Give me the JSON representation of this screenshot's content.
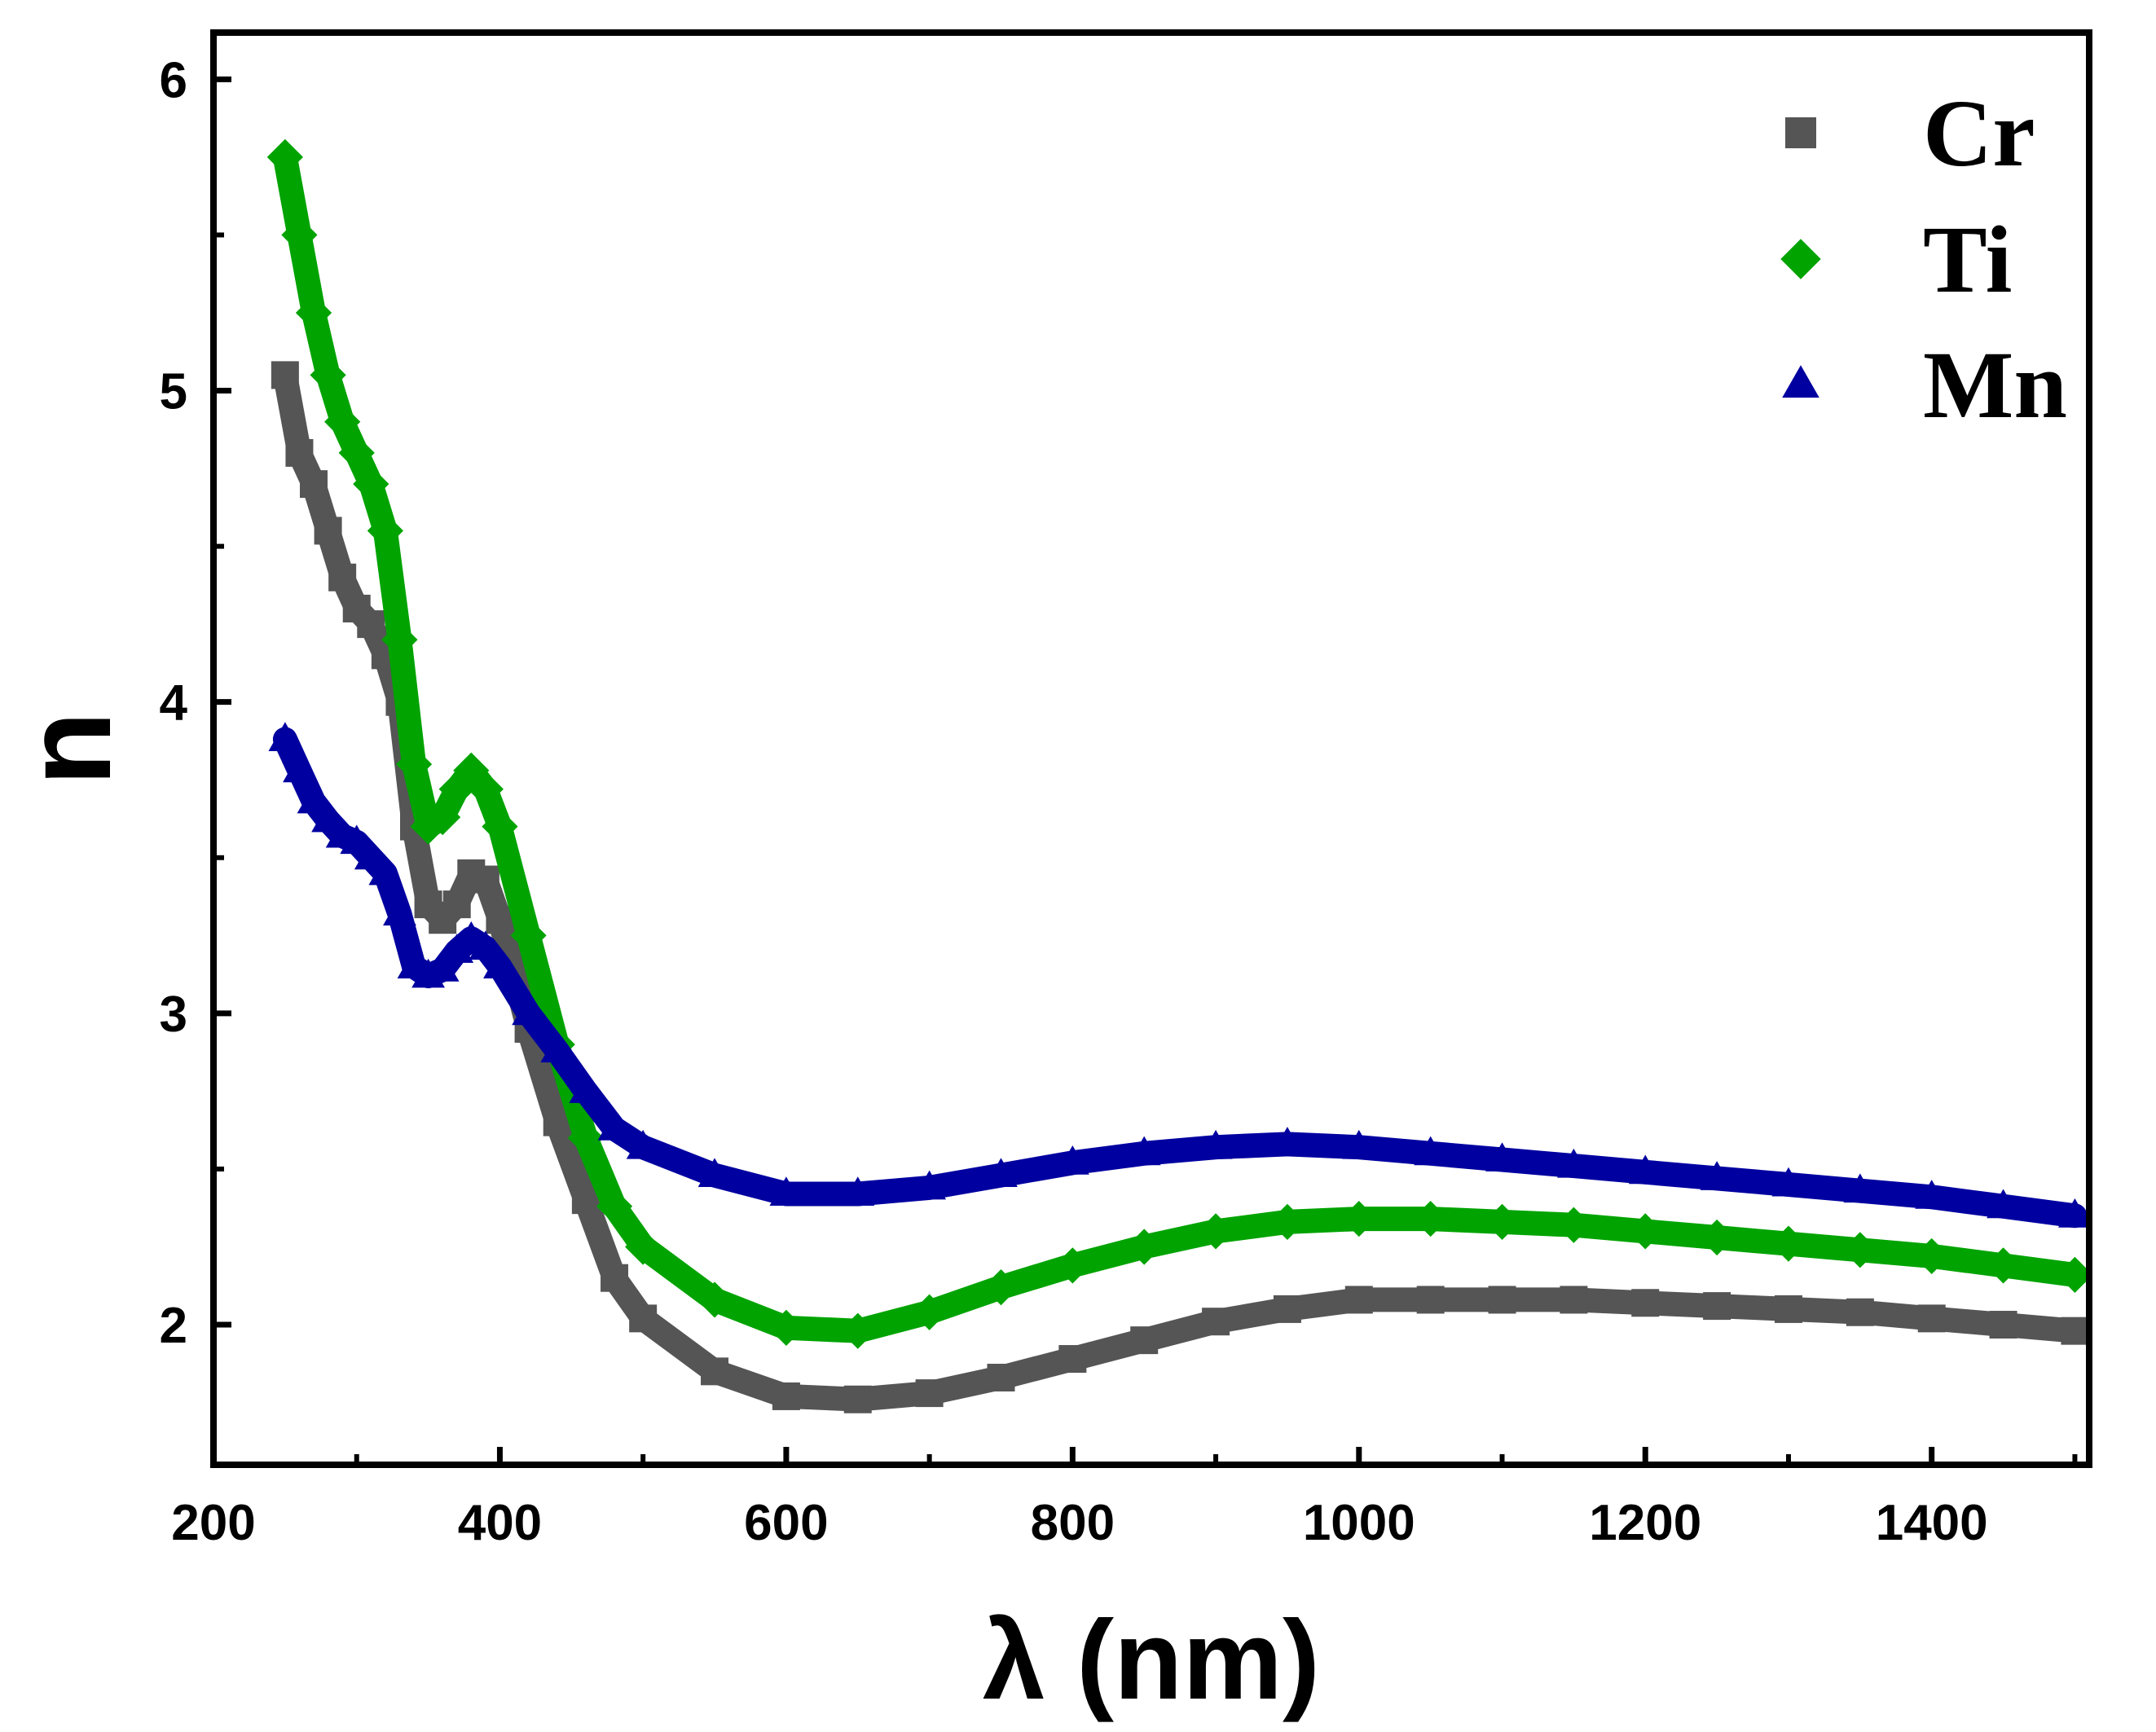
{
  "chart_data": {
    "type": "scatter",
    "title": "",
    "xlabel": "λ (nm)",
    "ylabel": "n",
    "xlim": [
      200,
      1510
    ],
    "ylim": [
      1.55,
      6.15
    ],
    "xticks": [
      200,
      400,
      600,
      800,
      1000,
      1200,
      1400
    ],
    "xtick_labels": [
      "200",
      "400",
      "600",
      "800",
      "1000",
      "1200",
      "1400"
    ],
    "yticks": [
      2,
      3,
      4,
      5,
      6
    ],
    "ytick_labels": [
      "2",
      "3",
      "4",
      "5",
      "6"
    ],
    "legend_position": "top-right",
    "grid": false,
    "series": [
      {
        "name": "Cr",
        "marker": "square",
        "color": "#555555",
        "x": [
          250,
          260,
          270,
          280,
          290,
          300,
          310,
          320,
          330,
          340,
          350,
          360,
          370,
          380,
          390,
          400,
          420,
          440,
          460,
          480,
          500,
          550,
          600,
          650,
          700,
          750,
          800,
          850,
          900,
          950,
          1000,
          1050,
          1100,
          1150,
          1200,
          1250,
          1300,
          1350,
          1400,
          1450,
          1500
        ],
        "y": [
          5.05,
          4.8,
          4.7,
          4.55,
          4.4,
          4.3,
          4.25,
          4.15,
          4.0,
          3.6,
          3.35,
          3.3,
          3.35,
          3.45,
          3.43,
          3.3,
          2.95,
          2.65,
          2.4,
          2.15,
          2.02,
          1.85,
          1.77,
          1.76,
          1.78,
          1.83,
          1.89,
          1.95,
          2.01,
          2.05,
          2.08,
          2.08,
          2.08,
          2.08,
          2.07,
          2.06,
          2.05,
          2.04,
          2.02,
          2.0,
          1.98
        ]
      },
      {
        "name": "Ti",
        "marker": "diamond",
        "color": "#00a300",
        "x": [
          250,
          260,
          270,
          280,
          290,
          300,
          310,
          320,
          330,
          340,
          350,
          360,
          370,
          380,
          390,
          400,
          420,
          440,
          460,
          480,
          500,
          550,
          600,
          650,
          700,
          750,
          800,
          850,
          900,
          950,
          1000,
          1050,
          1100,
          1150,
          1200,
          1250,
          1300,
          1350,
          1400,
          1450,
          1500
        ],
        "y": [
          5.75,
          5.5,
          5.25,
          5.05,
          4.9,
          4.8,
          4.7,
          4.55,
          4.2,
          3.8,
          3.6,
          3.63,
          3.72,
          3.78,
          3.72,
          3.6,
          3.25,
          2.9,
          2.6,
          2.38,
          2.25,
          2.08,
          1.99,
          1.98,
          2.04,
          2.12,
          2.19,
          2.25,
          2.3,
          2.33,
          2.34,
          2.34,
          2.33,
          2.32,
          2.3,
          2.28,
          2.26,
          2.24,
          2.22,
          2.19,
          2.16
        ]
      },
      {
        "name": "Mn",
        "marker": "triangle",
        "color": "#0000a0",
        "x": [
          250,
          260,
          270,
          280,
          290,
          300,
          310,
          320,
          330,
          340,
          350,
          360,
          370,
          380,
          390,
          400,
          420,
          440,
          460,
          480,
          500,
          550,
          600,
          650,
          700,
          750,
          800,
          850,
          900,
          950,
          1000,
          1050,
          1100,
          1150,
          1200,
          1250,
          1300,
          1350,
          1400,
          1450,
          1500
        ],
        "y": [
          3.88,
          3.78,
          3.68,
          3.62,
          3.57,
          3.55,
          3.5,
          3.45,
          3.32,
          3.15,
          3.12,
          3.14,
          3.2,
          3.24,
          3.21,
          3.15,
          3.0,
          2.88,
          2.75,
          2.63,
          2.57,
          2.48,
          2.42,
          2.42,
          2.44,
          2.48,
          2.52,
          2.55,
          2.57,
          2.58,
          2.57,
          2.55,
          2.53,
          2.51,
          2.49,
          2.47,
          2.45,
          2.43,
          2.41,
          2.38,
          2.35
        ]
      }
    ]
  }
}
